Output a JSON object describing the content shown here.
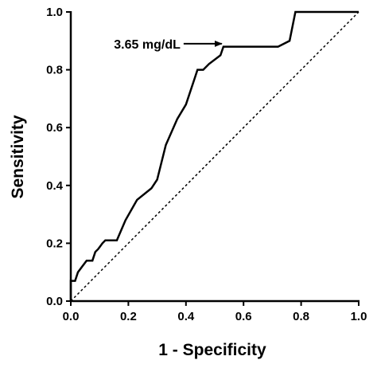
{
  "chart_data": {
    "type": "line",
    "title": "",
    "xlabel": "1 - Specificity",
    "ylabel": "Sensitivity",
    "xlim": [
      0,
      1
    ],
    "ylim": [
      0,
      1
    ],
    "x_ticks": [
      "0.0",
      "0.2",
      "0.4",
      "0.6",
      "0.8",
      "1.0"
    ],
    "y_ticks": [
      "0.0",
      "0.2",
      "0.4",
      "0.6",
      "0.8",
      "1.0"
    ],
    "grid": false,
    "legend": "none",
    "series": [
      {
        "style": "solid",
        "x": [
          0.0,
          0.0,
          0.015,
          0.025,
          0.04,
          0.055,
          0.07,
          0.075,
          0.085,
          0.095,
          0.11,
          0.12,
          0.125,
          0.14,
          0.145,
          0.16,
          0.19,
          0.23,
          0.28,
          0.3,
          0.33,
          0.37,
          0.4,
          0.43,
          0.44,
          0.46,
          0.48,
          0.52,
          0.53,
          0.72,
          0.76,
          0.78,
          1.0
        ],
        "y": [
          0.0,
          0.07,
          0.07,
          0.1,
          0.12,
          0.14,
          0.14,
          0.14,
          0.17,
          0.18,
          0.2,
          0.21,
          0.21,
          0.21,
          0.21,
          0.21,
          0.28,
          0.35,
          0.39,
          0.42,
          0.54,
          0.63,
          0.68,
          0.77,
          0.8,
          0.8,
          0.82,
          0.85,
          0.88,
          0.88,
          0.9,
          1.0,
          1.0
        ]
      },
      {
        "style": "dotted",
        "x": [
          0.0,
          1.0
        ],
        "y": [
          0.0,
          1.0
        ]
      }
    ],
    "annotations": [
      {
        "text": "3.65 mg/dL",
        "arrow_to": [
          0.53,
          0.89
        ]
      }
    ]
  }
}
